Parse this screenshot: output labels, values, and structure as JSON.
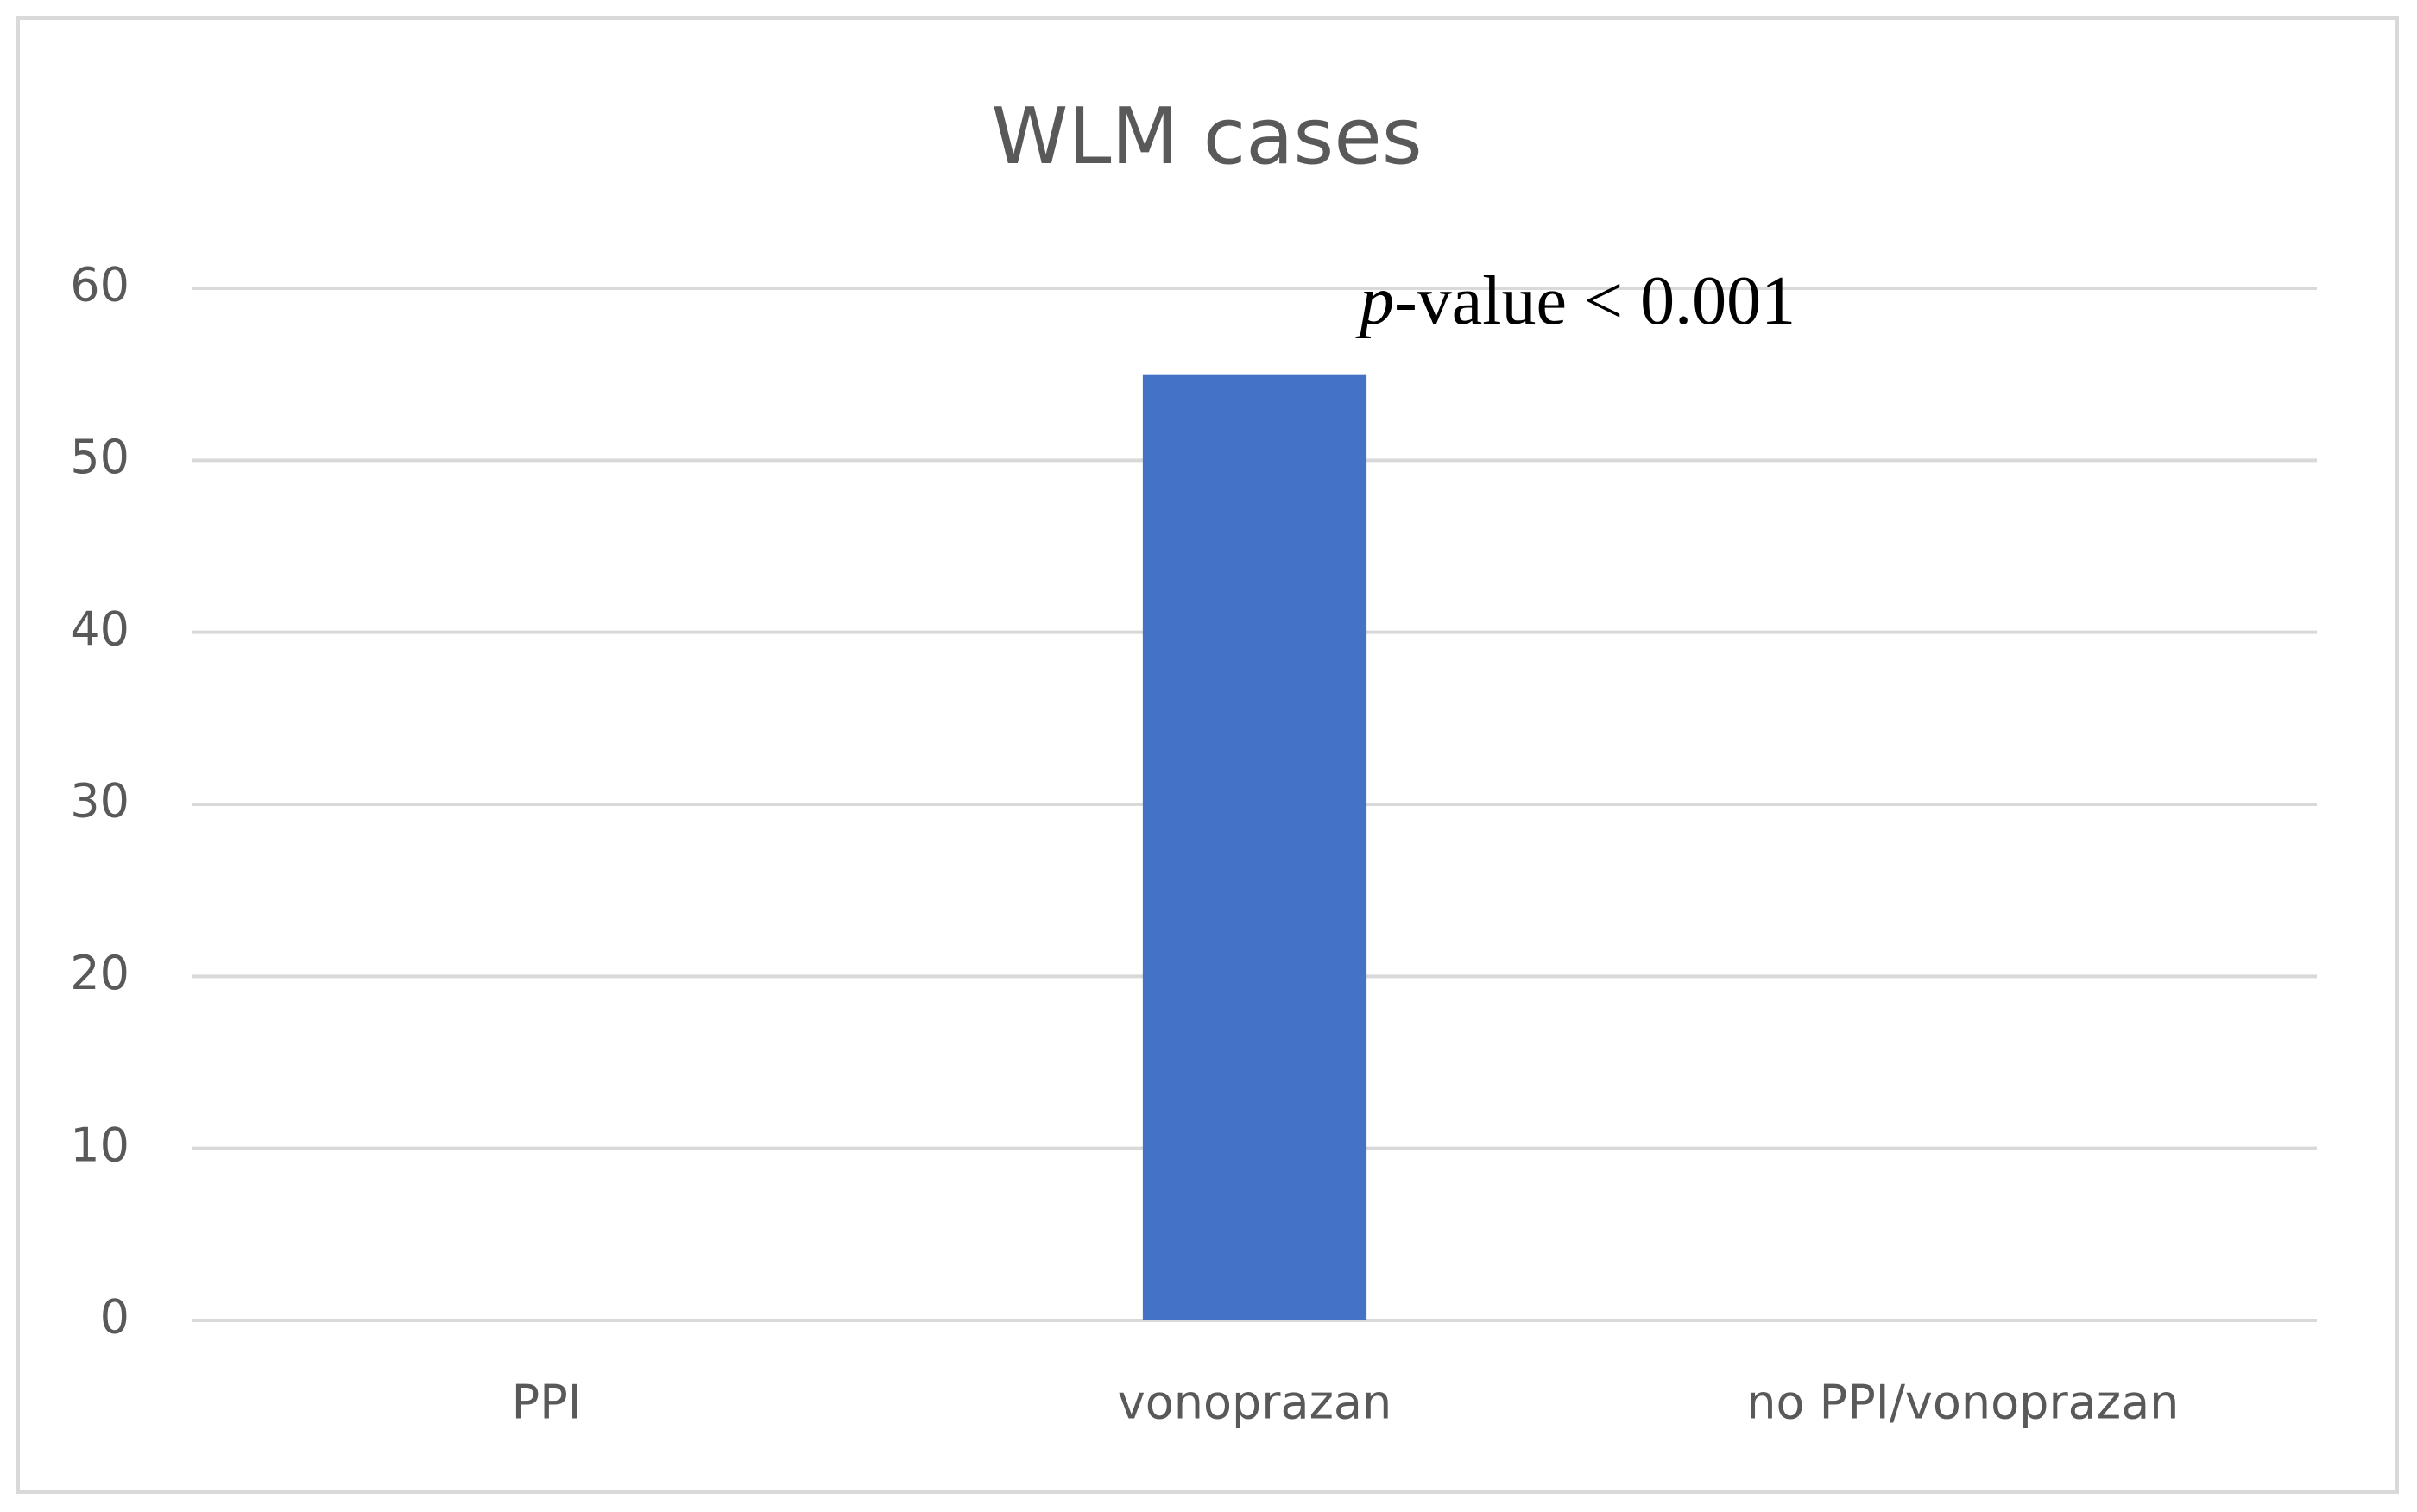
{
  "chart_data": {
    "type": "bar",
    "title": "WLM cases",
    "categories": [
      "PPI",
      "vonoprazan",
      "no PPI/vonoprazan"
    ],
    "values": [
      0,
      55,
      0
    ],
    "color": "#4472c4",
    "ylim": [
      0,
      60
    ],
    "yticks": [
      0,
      10,
      20,
      30,
      40,
      50,
      60
    ],
    "grid": true,
    "annotation": "p-value < 0.001"
  }
}
